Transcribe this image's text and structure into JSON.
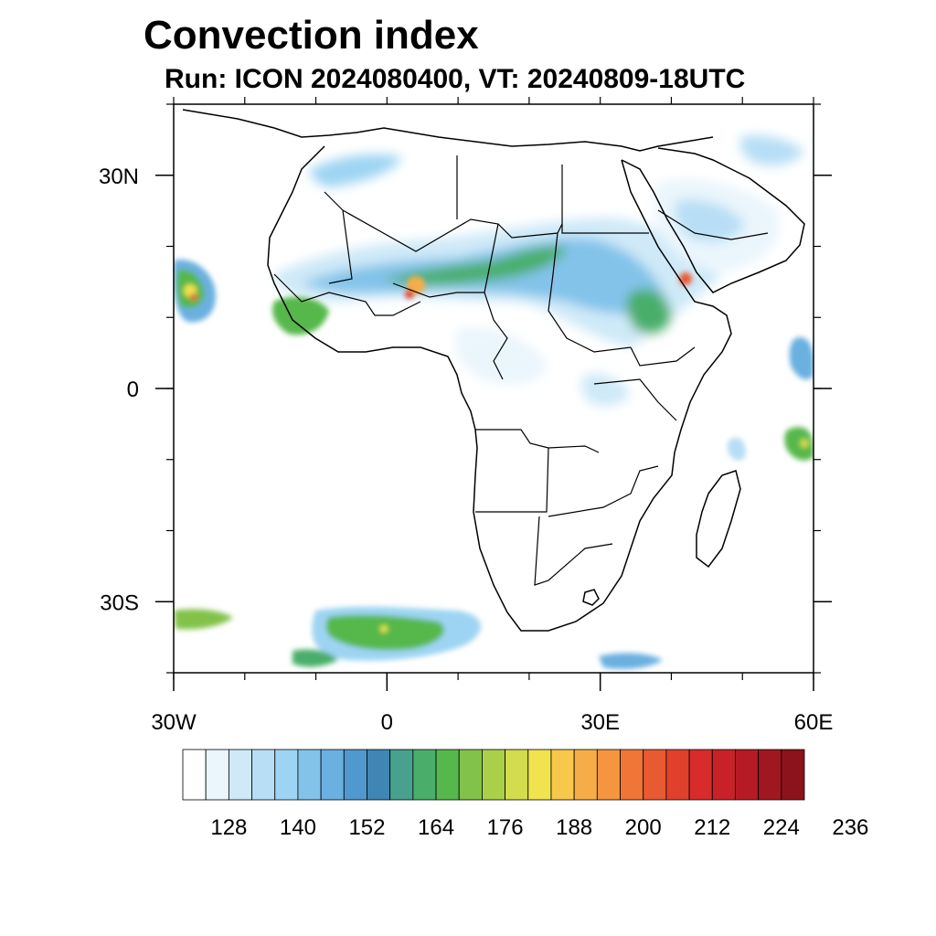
{
  "header": {
    "title": "Convection index",
    "subtitle": "Run: ICON 2024080400,  VT: 20240809-18UTC"
  },
  "map": {
    "extent": {
      "lon": [
        -30,
        60
      ],
      "lat": [
        -40,
        40
      ]
    },
    "lat_ticks": [
      {
        "value": 30,
        "label": "30N"
      },
      {
        "value": 0,
        "label": "0"
      },
      {
        "value": -30,
        "label": "30S"
      }
    ],
    "lon_ticks": [
      {
        "value": -30,
        "label": "30W"
      },
      {
        "value": 0,
        "label": "0"
      },
      {
        "value": 30,
        "label": "30E"
      },
      {
        "value": 60,
        "label": "60E"
      }
    ],
    "coastline_color": "#000000",
    "field_regions": [
      {
        "name": "sahel-band",
        "lon": [
          -10,
          40
        ],
        "lat": [
          8,
          22
        ],
        "level": 160
      },
      {
        "name": "gulf-of-guinea-coast",
        "lon": [
          -16,
          0
        ],
        "lat": [
          6,
          12
        ],
        "level": 168
      },
      {
        "name": "ethiopian-highlands",
        "lon": [
          33,
          43
        ],
        "lat": [
          6,
          16
        ],
        "level": 172
      },
      {
        "name": "arabian-peninsula",
        "lon": [
          38,
          58
        ],
        "lat": [
          12,
          28
        ],
        "level": 140
      },
      {
        "name": "atlas-mountains",
        "lon": [
          -8,
          8
        ],
        "lat": [
          28,
          34
        ],
        "level": 138
      },
      {
        "name": "atlantic-west",
        "lon": [
          -30,
          -20
        ],
        "lat": [
          10,
          18
        ],
        "level": 180
      },
      {
        "name": "southern-ocean",
        "lon": [
          -8,
          14
        ],
        "lat": [
          -38,
          -31
        ],
        "level": 176
      },
      {
        "name": "indian-ocean-east",
        "lon": [
          56,
          60
        ],
        "lat": [
          -12,
          6
        ],
        "level": 160
      }
    ]
  },
  "colorbar": {
    "colors": [
      "#ffffff",
      "#eaf5fc",
      "#cfe9f8",
      "#b7def5",
      "#9ed4f3",
      "#83c3ea",
      "#6ab0e0",
      "#5099cf",
      "#3f86b4",
      "#48a08f",
      "#4aae6a",
      "#56b84c",
      "#82c24a",
      "#aad04a",
      "#d2dc4d",
      "#f0e34f",
      "#f8c84b",
      "#f7ad47",
      "#f59540",
      "#ef7637",
      "#e85a31",
      "#e1402d",
      "#d82b2b",
      "#c82228",
      "#b61b25",
      "#a11721",
      "#8c131c"
    ],
    "labels": [
      "128",
      "140",
      "152",
      "164",
      "176",
      "188",
      "200",
      "212",
      "224",
      "236"
    ]
  }
}
